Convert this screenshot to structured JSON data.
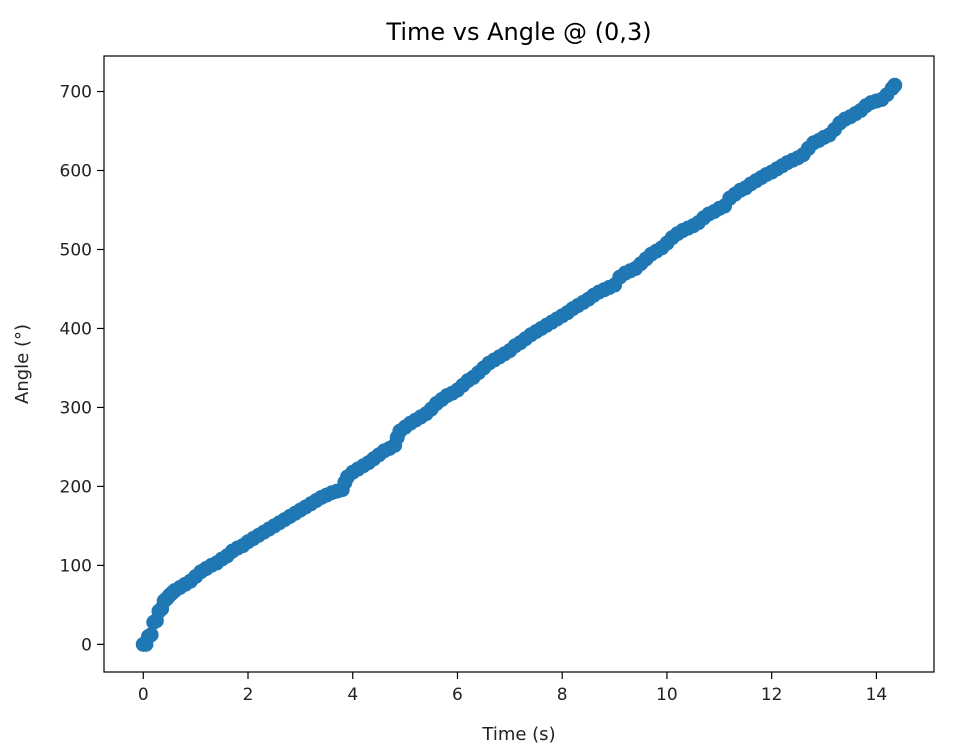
{
  "chart_data": {
    "type": "scatter",
    "title": "Time vs Angle @ (0,3)",
    "xlabel": "Time (s)",
    "ylabel": "Angle (°)",
    "xlim": [
      -0.75,
      15.1
    ],
    "ylim": [
      -35,
      745
    ],
    "xticks": [
      0,
      2,
      4,
      6,
      8,
      10,
      12,
      14
    ],
    "yticks": [
      0,
      100,
      200,
      300,
      400,
      500,
      600,
      700
    ],
    "grid": false,
    "color": "#1f77b4",
    "series": [
      {
        "points": [
          [
            0.0,
            0
          ],
          [
            0.05,
            0
          ],
          [
            0.1,
            10
          ],
          [
            0.15,
            12
          ],
          [
            0.2,
            28
          ],
          [
            0.25,
            30
          ],
          [
            0.3,
            42
          ],
          [
            0.35,
            45
          ],
          [
            0.4,
            55
          ],
          [
            0.45,
            58
          ],
          [
            0.5,
            62
          ],
          [
            0.55,
            65
          ],
          [
            0.6,
            68
          ],
          [
            0.7,
            72
          ],
          [
            0.8,
            76
          ],
          [
            0.9,
            80
          ],
          [
            1.0,
            86
          ],
          [
            1.1,
            92
          ],
          [
            1.2,
            96
          ],
          [
            1.3,
            100
          ],
          [
            1.4,
            103
          ],
          [
            1.5,
            108
          ],
          [
            1.6,
            112
          ],
          [
            1.7,
            118
          ],
          [
            1.8,
            122
          ],
          [
            1.9,
            125
          ],
          [
            2.0,
            130
          ],
          [
            2.1,
            134
          ],
          [
            2.2,
            138
          ],
          [
            2.3,
            142
          ],
          [
            2.4,
            146
          ],
          [
            2.5,
            150
          ],
          [
            2.6,
            154
          ],
          [
            2.7,
            158
          ],
          [
            2.8,
            162
          ],
          [
            2.9,
            166
          ],
          [
            3.0,
            170
          ],
          [
            3.1,
            174
          ],
          [
            3.2,
            178
          ],
          [
            3.3,
            182
          ],
          [
            3.4,
            186
          ],
          [
            3.5,
            189
          ],
          [
            3.6,
            192
          ],
          [
            3.7,
            194
          ],
          [
            3.8,
            196
          ],
          [
            3.85,
            205
          ],
          [
            3.9,
            212
          ],
          [
            4.0,
            218
          ],
          [
            4.1,
            222
          ],
          [
            4.2,
            226
          ],
          [
            4.3,
            230
          ],
          [
            4.4,
            235
          ],
          [
            4.5,
            240
          ],
          [
            4.6,
            245
          ],
          [
            4.7,
            248
          ],
          [
            4.8,
            252
          ],
          [
            4.85,
            262
          ],
          [
            4.9,
            270
          ],
          [
            5.0,
            275
          ],
          [
            5.1,
            280
          ],
          [
            5.2,
            284
          ],
          [
            5.3,
            288
          ],
          [
            5.4,
            292
          ],
          [
            5.5,
            298
          ],
          [
            5.6,
            305
          ],
          [
            5.7,
            310
          ],
          [
            5.8,
            315
          ],
          [
            5.9,
            318
          ],
          [
            6.0,
            322
          ],
          [
            6.1,
            328
          ],
          [
            6.2,
            334
          ],
          [
            6.3,
            338
          ],
          [
            6.4,
            344
          ],
          [
            6.5,
            350
          ],
          [
            6.6,
            356
          ],
          [
            6.7,
            360
          ],
          [
            6.8,
            364
          ],
          [
            6.9,
            368
          ],
          [
            7.0,
            372
          ],
          [
            7.1,
            378
          ],
          [
            7.2,
            382
          ],
          [
            7.3,
            387
          ],
          [
            7.4,
            392
          ],
          [
            7.5,
            396
          ],
          [
            7.6,
            400
          ],
          [
            7.7,
            404
          ],
          [
            7.8,
            408
          ],
          [
            7.9,
            412
          ],
          [
            8.0,
            416
          ],
          [
            8.1,
            420
          ],
          [
            8.2,
            425
          ],
          [
            8.3,
            429
          ],
          [
            8.4,
            433
          ],
          [
            8.5,
            437
          ],
          [
            8.6,
            442
          ],
          [
            8.7,
            446
          ],
          [
            8.8,
            449
          ],
          [
            8.9,
            452
          ],
          [
            9.0,
            455
          ],
          [
            9.1,
            465
          ],
          [
            9.2,
            470
          ],
          [
            9.3,
            473
          ],
          [
            9.4,
            476
          ],
          [
            9.5,
            482
          ],
          [
            9.6,
            488
          ],
          [
            9.7,
            494
          ],
          [
            9.8,
            498
          ],
          [
            9.9,
            502
          ],
          [
            10.0,
            508
          ],
          [
            10.1,
            515
          ],
          [
            10.2,
            520
          ],
          [
            10.3,
            524
          ],
          [
            10.4,
            527
          ],
          [
            10.5,
            530
          ],
          [
            10.6,
            534
          ],
          [
            10.7,
            540
          ],
          [
            10.8,
            545
          ],
          [
            10.9,
            548
          ],
          [
            11.0,
            552
          ],
          [
            11.1,
            555
          ],
          [
            11.2,
            565
          ],
          [
            11.3,
            570
          ],
          [
            11.4,
            575
          ],
          [
            11.5,
            578
          ],
          [
            11.6,
            583
          ],
          [
            11.7,
            587
          ],
          [
            11.8,
            591
          ],
          [
            11.9,
            595
          ],
          [
            12.0,
            598
          ],
          [
            12.1,
            602
          ],
          [
            12.2,
            606
          ],
          [
            12.3,
            610
          ],
          [
            12.4,
            613
          ],
          [
            12.5,
            616
          ],
          [
            12.6,
            620
          ],
          [
            12.7,
            628
          ],
          [
            12.8,
            635
          ],
          [
            12.9,
            638
          ],
          [
            13.0,
            642
          ],
          [
            13.1,
            645
          ],
          [
            13.2,
            652
          ],
          [
            13.3,
            660
          ],
          [
            13.4,
            665
          ],
          [
            13.5,
            668
          ],
          [
            13.6,
            672
          ],
          [
            13.7,
            676
          ],
          [
            13.8,
            682
          ],
          [
            13.9,
            686
          ],
          [
            14.0,
            688
          ],
          [
            14.1,
            690
          ],
          [
            14.2,
            696
          ],
          [
            14.3,
            704
          ],
          [
            14.35,
            708
          ]
        ]
      }
    ]
  }
}
